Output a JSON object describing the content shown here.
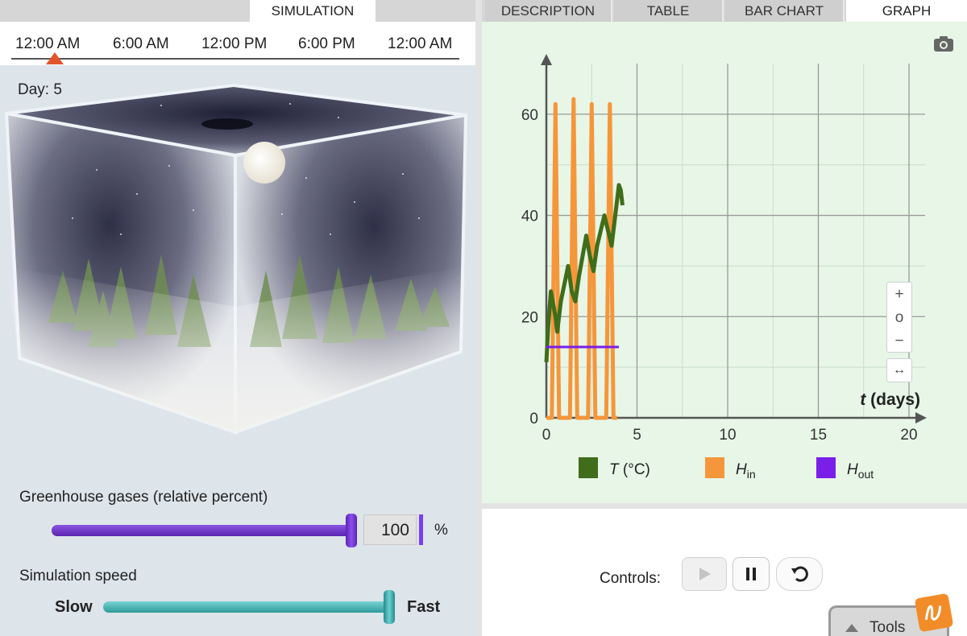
{
  "tabs": {
    "simulation": "SIMULATION",
    "description": "DESCRIPTION",
    "table": "TABLE",
    "bar_chart": "BAR CHART",
    "graph": "GRAPH"
  },
  "timeline": {
    "labels": [
      "12:00 AM",
      "6:00 AM",
      "12:00 PM",
      "6:00 PM",
      "12:00 AM"
    ],
    "marker_color": "#e0552c"
  },
  "simulation": {
    "day_label": "Day: 5",
    "scene": "night"
  },
  "greenhouse": {
    "label": "Greenhouse gases (relative percent)",
    "value": "100",
    "unit": "%",
    "level": 1.0,
    "color": "#7b3ff2"
  },
  "speed": {
    "label": "Simulation speed",
    "slow": "Slow",
    "fast": "Fast",
    "level": 1.0,
    "color": "#3fb0b0"
  },
  "controls": {
    "label": "Controls:",
    "play_icon": "play-icon",
    "pause_icon": "pause-icon",
    "reset_icon": "reset-icon"
  },
  "tools": {
    "label": "Tools"
  },
  "zoom": {
    "in": "+",
    "reset": "o",
    "out": "−",
    "fit": "↔"
  },
  "chart_data": {
    "type": "line",
    "xlabel_var": "t",
    "xlabel_unit": "(days)",
    "xlim": [
      0,
      20
    ],
    "ylim": [
      0,
      70
    ],
    "x_ticks": [
      0,
      5,
      10,
      15,
      20
    ],
    "y_ticks": [
      0,
      20,
      40,
      60
    ],
    "grid": true,
    "legend_position": "bottom",
    "series": [
      {
        "key": "T",
        "legend_var": "T",
        "legend_unit": "(°C)",
        "legend_sub": "",
        "color": "#3f6d1a",
        "points": [
          [
            0,
            11
          ],
          [
            0.1,
            18
          ],
          [
            0.25,
            25
          ],
          [
            0.5,
            20
          ],
          [
            0.6,
            17
          ],
          [
            0.8,
            23
          ],
          [
            1.2,
            30
          ],
          [
            1.4,
            25
          ],
          [
            1.6,
            23
          ],
          [
            1.8,
            28
          ],
          [
            2.2,
            36
          ],
          [
            2.4,
            32
          ],
          [
            2.6,
            29
          ],
          [
            2.8,
            34
          ],
          [
            3.2,
            40
          ],
          [
            3.4,
            37
          ],
          [
            3.6,
            34
          ],
          [
            3.8,
            40
          ],
          [
            4.0,
            46
          ],
          [
            4.1,
            45
          ],
          [
            4.2,
            42
          ]
        ]
      },
      {
        "key": "Hin",
        "legend_var": "H",
        "legend_unit": "",
        "legend_sub": "in",
        "color": "#f5963a",
        "points": [
          [
            0,
            0
          ],
          [
            0.3,
            0
          ],
          [
            0.5,
            62
          ],
          [
            0.7,
            0
          ],
          [
            1.3,
            0
          ],
          [
            1.5,
            63
          ],
          [
            1.7,
            0
          ],
          [
            2.3,
            0
          ],
          [
            2.5,
            62
          ],
          [
            2.7,
            0
          ],
          [
            3.3,
            0
          ],
          [
            3.5,
            62
          ],
          [
            3.7,
            0
          ],
          [
            3.9,
            0
          ]
        ]
      },
      {
        "key": "Hout",
        "legend_var": "H",
        "legend_unit": "",
        "legend_sub": "out",
        "color": "#7a1fe8",
        "points": [
          [
            0,
            14
          ],
          [
            4.0,
            14
          ]
        ]
      }
    ]
  }
}
